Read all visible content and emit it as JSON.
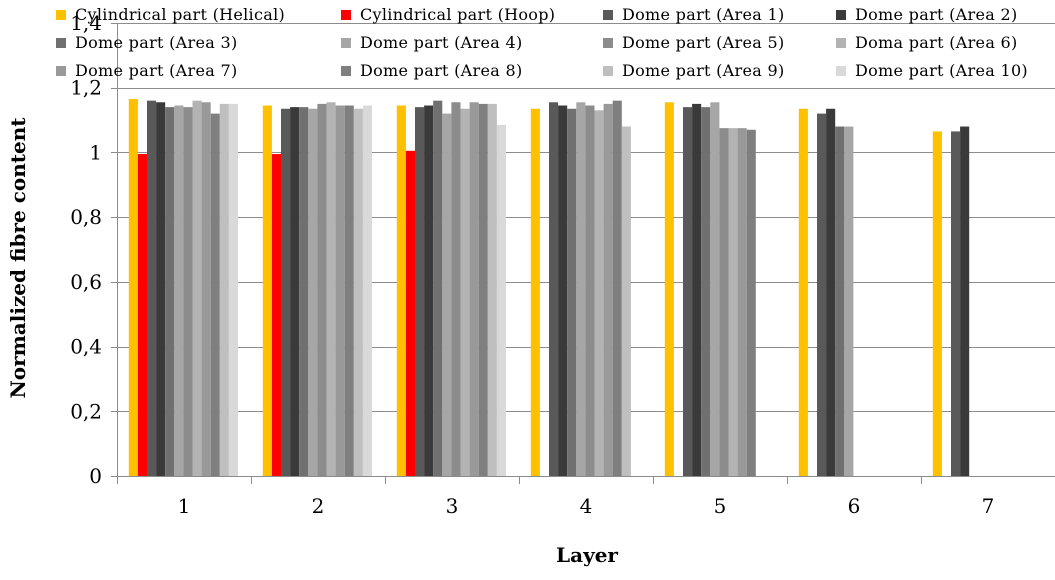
{
  "chart_data": {
    "type": "bar",
    "title": "",
    "xlabel": "Layer",
    "ylabel": "Normalized fibre content",
    "categories": [
      "1",
      "2",
      "3",
      "4",
      "5",
      "6",
      "7"
    ],
    "y_ticks": [
      "0",
      "0,2",
      "0,4",
      "0,6",
      "0,8",
      "1",
      "1,2",
      "1,4"
    ],
    "ylim": [
      0,
      1.4
    ],
    "grid": "horizontal",
    "legend_position": "top",
    "series": [
      {
        "name": "Cylindrical part (Helical)",
        "color": "#FFC000",
        "values": [
          1.165,
          1.145,
          1.145,
          1.135,
          1.155,
          1.135,
          1.065
        ]
      },
      {
        "name": "Cylindrical part (Hoop)",
        "color": "#FF0000",
        "values": [
          0.995,
          0.995,
          1.005,
          null,
          null,
          null,
          null
        ]
      },
      {
        "name": "Dome part (Area 1)",
        "color": "#595959",
        "values": [
          1.16,
          1.135,
          1.14,
          1.155,
          1.14,
          1.12,
          1.065
        ]
      },
      {
        "name": "Dome part (Area 2)",
        "color": "#3A3A3A",
        "values": [
          1.155,
          1.14,
          1.145,
          1.145,
          1.15,
          1.135,
          1.08
        ]
      },
      {
        "name": "Dome part (Area 3)",
        "color": "#707070",
        "values": [
          1.14,
          1.14,
          1.16,
          1.135,
          1.14,
          1.08,
          null
        ]
      },
      {
        "name": "Dome part (Area 4)",
        "color": "#A6A6A6",
        "values": [
          1.145,
          1.135,
          1.12,
          1.155,
          1.155,
          1.08,
          null
        ]
      },
      {
        "name": "Dome part (Area 5)",
        "color": "#8C8C8C",
        "values": [
          1.14,
          1.15,
          1.155,
          1.145,
          1.075,
          null,
          null
        ]
      },
      {
        "name": "Doma part (Area 6)",
        "color": "#B3B3B3",
        "values": [
          1.16,
          1.155,
          1.135,
          1.13,
          1.075,
          null,
          null
        ]
      },
      {
        "name": "Dome part (Area 7)",
        "color": "#999999",
        "values": [
          1.155,
          1.145,
          1.155,
          1.15,
          1.075,
          null,
          null
        ]
      },
      {
        "name": "Dome part (Area 8)",
        "color": "#7F7F7F",
        "values": [
          1.12,
          1.145,
          1.15,
          1.16,
          1.07,
          null,
          null
        ]
      },
      {
        "name": "Dome part (Area 9)",
        "color": "#BFBFBF",
        "values": [
          1.15,
          1.135,
          1.15,
          1.08,
          null,
          null,
          null
        ]
      },
      {
        "name": "Dome part (Area 10)",
        "color": "#D9D9D9",
        "values": [
          1.15,
          1.145,
          1.085,
          null,
          null,
          null,
          null
        ]
      }
    ]
  }
}
